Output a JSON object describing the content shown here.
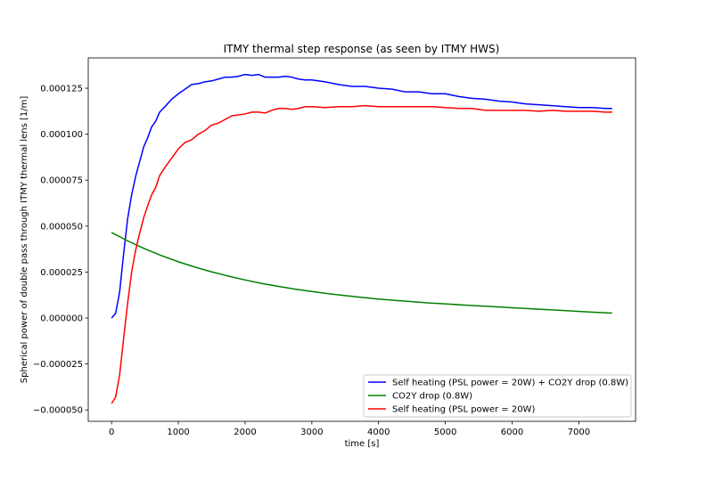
{
  "chart_data": {
    "type": "line",
    "title": "ITMY thermal step response (as seen by ITMY HWS)",
    "xlabel": "time [s]",
    "ylabel": "Spherical power of double pass through ITMY thermal lens [1/m]",
    "xlim": [
      -350,
      7850
    ],
    "ylim": [
      -5.62e-05,
      0.0001415
    ],
    "xticks": [
      0,
      1000,
      2000,
      3000,
      4000,
      5000,
      6000,
      7000
    ],
    "xtick_labels": [
      "0",
      "1000",
      "2000",
      "3000",
      "4000",
      "5000",
      "6000",
      "7000"
    ],
    "yticks": [
      -5e-05,
      -2.5e-05,
      0,
      2.5e-05,
      5e-05,
      7.5e-05,
      0.0001,
      0.000125
    ],
    "ytick_labels": [
      "−0.000050",
      "−0.000025",
      "0.000000",
      "0.000025",
      "0.000050",
      "0.000075",
      "0.000100",
      "0.000125"
    ],
    "grid": false,
    "legend_position": "lower-right",
    "series": [
      {
        "name": "Self heating (PSL power = 20W) + CO2Y drop (0.8W)",
        "color": "#0000ff",
        "x": [
          0,
          60,
          120,
          180,
          240,
          300,
          360,
          420,
          480,
          540,
          600,
          660,
          720,
          800,
          900,
          1000,
          1100,
          1200,
          1300,
          1400,
          1500,
          1600,
          1700,
          1800,
          1900,
          2000,
          2100,
          2200,
          2300,
          2400,
          2500,
          2600,
          2700,
          2800,
          2900,
          3000,
          3200,
          3400,
          3600,
          3800,
          4000,
          4200,
          4400,
          4600,
          4800,
          5000,
          5200,
          5400,
          5600,
          5800,
          6000,
          6200,
          6400,
          6600,
          6800,
          7000,
          7200,
          7400,
          7500
        ],
        "y": [
          0.0,
          2.5e-06,
          1.4e-05,
          3.5e-05,
          5.4e-05,
          6.7e-05,
          7.7e-05,
          8.5e-05,
          9.3e-05,
          9.8e-05,
          0.000104,
          0.000107,
          0.000112,
          0.000115,
          0.000119,
          0.000122,
          0.0001245,
          0.000127,
          0.0001275,
          0.0001285,
          0.000129,
          0.00013,
          0.000131,
          0.000131,
          0.0001315,
          0.0001325,
          0.000132,
          0.0001325,
          0.000131,
          0.000131,
          0.000131,
          0.0001315,
          0.000131,
          0.00013,
          0.0001295,
          0.0001295,
          0.0001285,
          0.000127,
          0.000126,
          0.000126,
          0.000125,
          0.0001245,
          0.000123,
          0.000123,
          0.000122,
          0.000122,
          0.0001205,
          0.0001195,
          0.000119,
          0.000118,
          0.0001175,
          0.0001165,
          0.000116,
          0.0001155,
          0.000115,
          0.0001145,
          0.0001145,
          0.000114,
          0.000114
        ]
      },
      {
        "name": "CO2Y drop (0.8W)",
        "color": "#008000",
        "x": [
          0,
          250,
          500,
          750,
          1000,
          1250,
          1500,
          1750,
          2000,
          2250,
          2500,
          2750,
          3000,
          3250,
          3500,
          3750,
          4000,
          4250,
          4500,
          4750,
          5000,
          5250,
          5500,
          5750,
          6000,
          6250,
          6500,
          6750,
          7000,
          7250,
          7500
        ],
        "y": [
          4.65e-05,
          4.18e-05,
          3.76e-05,
          3.39e-05,
          3.06e-05,
          2.77e-05,
          2.51e-05,
          2.28e-05,
          2.07e-05,
          1.88e-05,
          1.72e-05,
          1.57e-05,
          1.44e-05,
          1.32e-05,
          1.22e-05,
          1.12e-05,
          1.03e-05,
          9.6e-06,
          8.9e-06,
          8.2e-06,
          7.7e-06,
          7.1e-06,
          6.6e-06,
          6.1e-06,
          5.6e-06,
          5.1e-06,
          4.6e-06,
          4.1e-06,
          3.6e-06,
          3.1e-06,
          2.7e-06
        ]
      },
      {
        "name": "Self heating (PSL power = 20W)",
        "color": "#ff0000",
        "x": [
          0,
          60,
          120,
          180,
          240,
          300,
          360,
          420,
          480,
          540,
          600,
          660,
          720,
          800,
          900,
          1000,
          1100,
          1200,
          1300,
          1400,
          1500,
          1600,
          1700,
          1800,
          1900,
          2000,
          2100,
          2200,
          2300,
          2400,
          2500,
          2600,
          2700,
          2800,
          2900,
          3000,
          3200,
          3400,
          3600,
          3800,
          4000,
          4200,
          4400,
          4600,
          4800,
          5000,
          5200,
          5400,
          5600,
          5800,
          6000,
          6200,
          6400,
          6600,
          6800,
          7000,
          7200,
          7400,
          7500
        ],
        "y": [
          -4.65e-05,
          -4.3e-05,
          -3.1e-05,
          -1.1e-05,
          8e-06,
          2.5e-05,
          3.7e-05,
          4.6e-05,
          5.45e-05,
          6.1e-05,
          6.7e-05,
          7.1e-05,
          7.75e-05,
          8.2e-05,
          8.7e-05,
          9.2e-05,
          9.55e-05,
          9.7e-05,
          0.0001,
          0.000102,
          0.000105,
          0.000106,
          0.000108,
          0.00011,
          0.0001105,
          0.000111,
          0.000112,
          0.000112,
          0.0001115,
          0.000113,
          0.000114,
          0.000114,
          0.0001135,
          0.000114,
          0.000115,
          0.000115,
          0.0001145,
          0.000115,
          0.000115,
          0.0001155,
          0.000115,
          0.000115,
          0.000115,
          0.000115,
          0.000115,
          0.0001145,
          0.000114,
          0.000114,
          0.000113,
          0.000113,
          0.000113,
          0.000113,
          0.0001125,
          0.000113,
          0.0001125,
          0.0001125,
          0.0001125,
          0.000112,
          0.000112
        ]
      }
    ]
  }
}
